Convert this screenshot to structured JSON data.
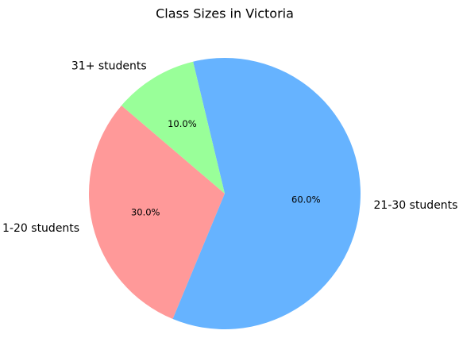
{
  "chart_data": {
    "type": "pie",
    "title": "Class Sizes in Victoria",
    "categories": [
      "1-20 students",
      "21-30 students",
      "31+ students"
    ],
    "values": [
      30,
      60,
      10
    ],
    "value_labels": [
      "30.0%",
      "60.0%",
      "10.0%"
    ],
    "colors": [
      "#ff9999",
      "#66b3ff",
      "#99ff99"
    ]
  }
}
